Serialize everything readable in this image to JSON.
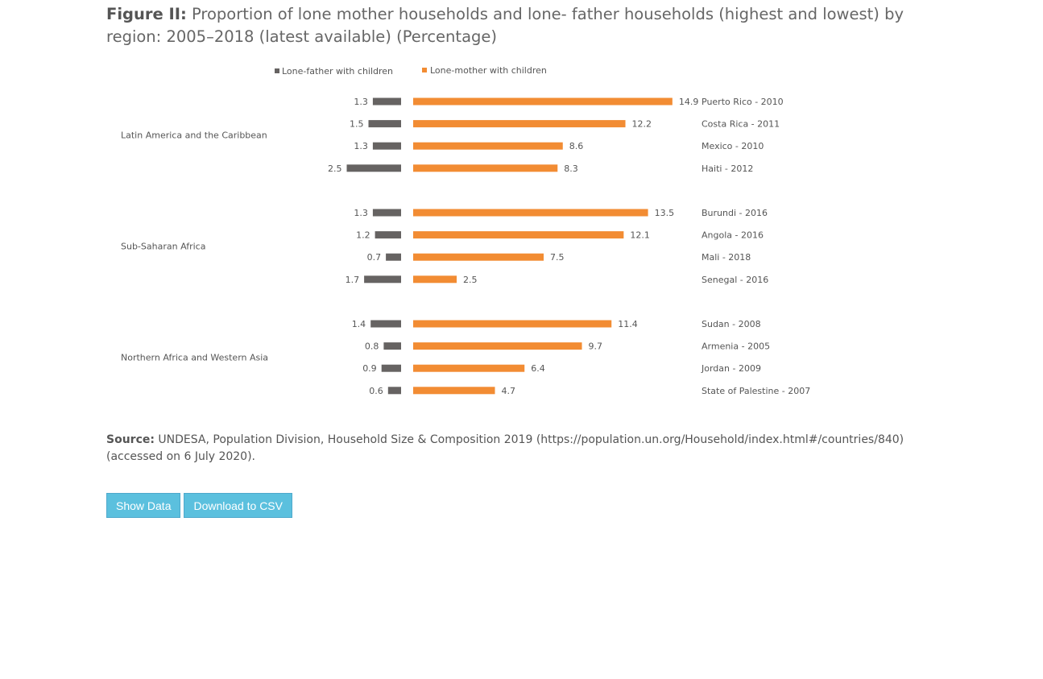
{
  "title": {
    "prefix": "Figure II:",
    "text": " Proportion of lone mother households and lone- father households (highest and lowest) by region: 2005–2018 (latest available) (Percentage)"
  },
  "source": {
    "prefix": "Source:",
    "text": " UNDESA, Population Division, Household Size & Composition 2019 (https://population.un.org/Household/index.html#/countries/840) (accessed on 6 July 2020)."
  },
  "buttons": {
    "show_data": "Show Data",
    "download_csv": "Download to CSV"
  },
  "colors": {
    "father": "#666362",
    "mother": "#f28c33"
  },
  "chart_data": {
    "type": "bar",
    "title": "",
    "legend": {
      "placement": "top",
      "father_label": "Lone-father with children",
      "mother_label": "Lone-mother with children"
    },
    "groups": [
      {
        "region": "Latin America and the Caribbean",
        "rows": [
          {
            "country": "Puerto Rico - 2010",
            "father": 1.3,
            "mother": 14.9
          },
          {
            "country": "Costa Rica - 2011",
            "father": 1.5,
            "mother": 12.2
          },
          {
            "country": "Mexico - 2010",
            "father": 1.3,
            "mother": 8.6
          },
          {
            "country": "Haiti - 2012",
            "father": 2.5,
            "mother": 8.3
          }
        ]
      },
      {
        "region": "Sub-Saharan Africa",
        "rows": [
          {
            "country": "Burundi - 2016",
            "father": 1.3,
            "mother": 13.5
          },
          {
            "country": "Angola - 2016",
            "father": 1.2,
            "mother": 12.1
          },
          {
            "country": "Mali - 2018",
            "father": 0.7,
            "mother": 7.5
          },
          {
            "country": "Senegal - 2016",
            "father": 1.7,
            "mother": 2.5
          }
        ]
      },
      {
        "region": "Northern Africa and Western Asia",
        "rows": [
          {
            "country": "Sudan - 2008",
            "father": 1.4,
            "mother": 11.4
          },
          {
            "country": "Armenia - 2005",
            "father": 0.8,
            "mother": 9.7
          },
          {
            "country": "Jordan - 2009",
            "father": 0.9,
            "mother": 6.4
          },
          {
            "country": "State of Palestine - 2007",
            "father": 0.6,
            "mother": 4.7
          }
        ]
      }
    ]
  }
}
